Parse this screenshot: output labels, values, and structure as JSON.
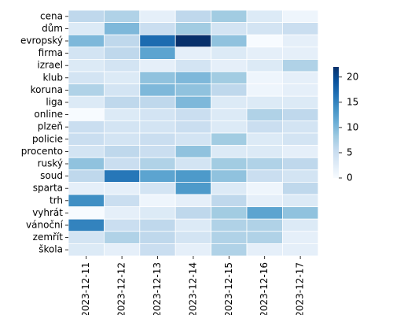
{
  "chart_data": {
    "type": "heatmap",
    "title": "",
    "xlabel": "",
    "ylabel": "",
    "rows": [
      "cena",
      "dům",
      "evropský",
      "firma",
      "izrael",
      "klub",
      "koruna",
      "liga",
      "online",
      "plzeň",
      "policie",
      "procento",
      "ruský",
      "soud",
      "sparta",
      "trh",
      "vyhrát",
      "vánoční",
      "zemřít",
      "škola"
    ],
    "columns": [
      "2023-12-11",
      "2023-12-12",
      "2023-12-13",
      "2023-12-14",
      "2023-12-15",
      "2023-12-16",
      "2023-12-17"
    ],
    "values": [
      [
        6,
        7,
        2,
        6,
        8,
        3,
        1
      ],
      [
        3,
        10,
        5,
        8,
        4,
        4,
        5
      ],
      [
        10,
        6,
        17,
        22,
        9,
        0,
        2
      ],
      [
        4,
        6,
        12,
        2,
        3,
        2,
        2
      ],
      [
        3,
        4,
        2,
        4,
        2,
        3,
        7
      ],
      [
        4,
        3,
        9,
        10,
        8,
        1,
        2
      ],
      [
        7,
        4,
        10,
        9,
        6,
        1,
        2
      ],
      [
        3,
        6,
        6,
        10,
        3,
        3,
        3
      ],
      [
        0,
        3,
        4,
        5,
        3,
        7,
        6
      ],
      [
        5,
        4,
        4,
        5,
        3,
        5,
        4
      ],
      [
        5,
        4,
        5,
        4,
        8,
        3,
        4
      ],
      [
        4,
        6,
        5,
        9,
        3,
        3,
        2
      ],
      [
        9,
        5,
        7,
        4,
        8,
        7,
        6
      ],
      [
        6,
        16,
        12,
        13,
        9,
        5,
        4
      ],
      [
        2,
        2,
        4,
        13,
        3,
        1,
        6
      ],
      [
        14,
        5,
        1,
        2,
        6,
        2,
        3
      ],
      [
        0,
        2,
        3,
        6,
        8,
        12,
        9
      ],
      [
        15,
        5,
        6,
        3,
        7,
        7,
        3
      ],
      [
        4,
        7,
        6,
        4,
        7,
        7,
        2
      ],
      [
        3,
        2,
        5,
        2,
        7,
        2,
        2
      ]
    ],
    "colorbar": {
      "min": 0,
      "max": 22,
      "ticks": [
        0,
        5,
        10,
        15,
        20
      ]
    },
    "colormap": [
      "#f7fbff",
      "#deebf7",
      "#c6dbef",
      "#9ecae1",
      "#6baed6",
      "#4292c6",
      "#2171b5",
      "#08519c",
      "#08306b"
    ]
  }
}
